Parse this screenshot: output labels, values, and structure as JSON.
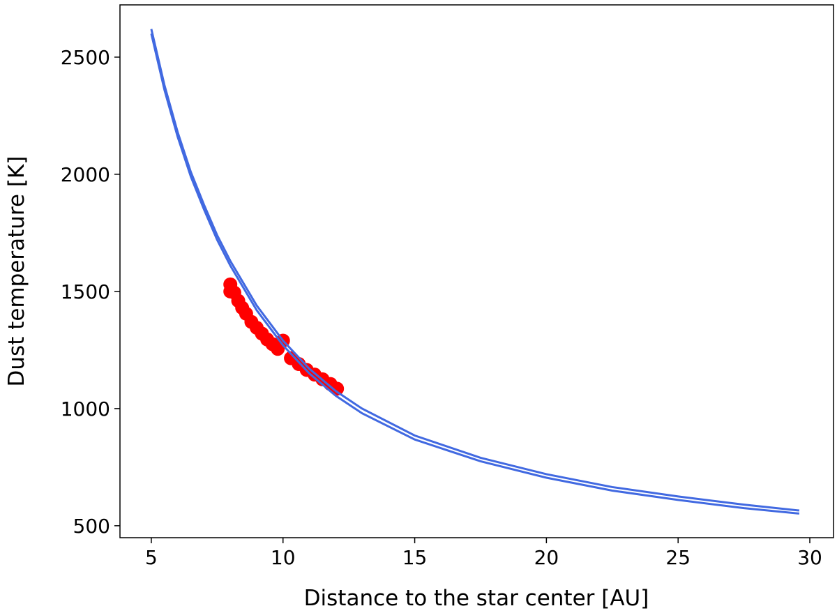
{
  "chart_data": {
    "type": "line",
    "xlabel": "Distance to the star center [AU]",
    "ylabel": "Dust temperature [K]",
    "xlim": [
      3.81,
      30.9
    ],
    "ylim": [
      449,
      2723
    ],
    "xticks": [
      5,
      10,
      15,
      20,
      25,
      30
    ],
    "yticks": [
      500,
      1000,
      1500,
      2000,
      2500
    ],
    "series": [
      {
        "color": "#4169e1",
        "kind": "line",
        "x": [
          5,
          5.5,
          6,
          6.5,
          7,
          7.5,
          8,
          9,
          10,
          11,
          12,
          13,
          15,
          17.5,
          20,
          22.5,
          25,
          27.5,
          29.6
        ],
        "values": [
          2620,
          2380,
          2180,
          2010,
          1870,
          1740,
          1630,
          1440,
          1290,
          1170,
          1075,
          1000,
          885,
          790,
          720,
          665,
          625,
          590,
          565
        ]
      },
      {
        "color": "#4169e1",
        "kind": "line",
        "x": [
          5,
          5.5,
          6,
          6.5,
          7,
          7.5,
          8,
          9,
          10,
          11,
          12,
          13,
          15,
          17.5,
          20,
          22.5,
          25,
          27.5,
          29.6
        ],
        "values": [
          2600,
          2360,
          2160,
          1990,
          1850,
          1720,
          1610,
          1420,
          1270,
          1150,
          1055,
          980,
          868,
          775,
          705,
          650,
          610,
          575,
          552
        ]
      },
      {
        "color": "#ff0000",
        "kind": "scatter",
        "x": [
          8.0,
          8.0,
          8.15,
          8.3,
          8.45,
          8.6,
          8.8,
          9.0,
          9.2,
          9.4,
          9.6,
          9.8,
          10.0,
          10.3,
          10.6,
          10.9,
          11.2,
          11.5,
          11.8,
          12.05
        ],
        "values": [
          1530,
          1500,
          1495,
          1460,
          1430,
          1405,
          1370,
          1345,
          1320,
          1295,
          1275,
          1255,
          1290,
          1215,
          1190,
          1165,
          1145,
          1125,
          1105,
          1085
        ]
      }
    ]
  }
}
